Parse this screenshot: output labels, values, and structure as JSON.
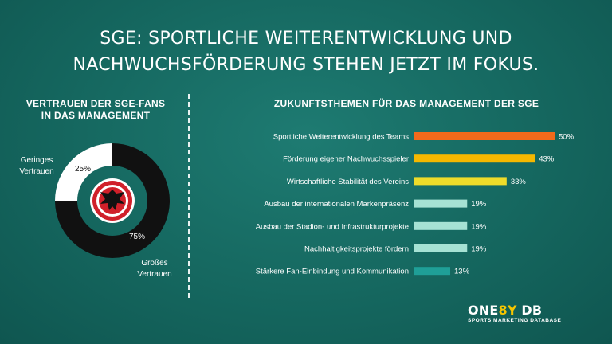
{
  "title_line1": "SGE: SPORTLICHE WEITERENTWICKLUNG UND",
  "title_line2": "NACHWUCHSFÖRDERUNG STEHEN JETZT IM FOKUS.",
  "colors": {
    "orange": "#f26a1b",
    "amber": "#f5b800",
    "yellow": "#eedc2a",
    "mint": "#a6e2d4",
    "teal": "#1f9f97",
    "donut_dark": "#111111",
    "donut_light": "#ffffff",
    "badge_red": "#d0202a"
  },
  "logo": {
    "part1": "ONE",
    "accent": "8Y",
    "part2": " DB",
    "sub": "SPORTS MARKETING DATABASE"
  },
  "chart_data": [
    {
      "type": "pie",
      "title_line1": "VERTRAUEN DER SGE-FANS",
      "title_line2": "IN DAS MANAGEMENT",
      "slices": [
        {
          "label_line1": "Geringes",
          "label_line2": "Vertrauen",
          "value": 25,
          "value_label": "25%",
          "color": "#ffffff"
        },
        {
          "label_line1": "Großes",
          "label_line2": "Vertrauen",
          "value": 75,
          "value_label": "75%",
          "color": "#111111"
        }
      ]
    },
    {
      "type": "bar",
      "orientation": "horizontal",
      "title": "ZUKUNFTSTHEMEN FÜR DAS MANAGEMENT DER SGE",
      "xlim": [
        0,
        50
      ],
      "categories": [
        "Sportliche Weiterentwicklung des Teams",
        "Förderung eigener Nachwuchsspieler",
        "Wirtschaftliche Stabilität des Vereins",
        "Ausbau der internationalen Markenpräsenz",
        "Ausbau der Stadion- und Infrastrukturprojekte",
        "Nachhaltigkeitsprojekte fördern",
        "Stärkere Fan-Einbindung und Kommunikation"
      ],
      "values": [
        50,
        43,
        33,
        19,
        19,
        19,
        13
      ],
      "value_labels": [
        "50%",
        "43%",
        "33%",
        "19%",
        "19%",
        "19%",
        "13%"
      ],
      "bar_colors": [
        "#f26a1b",
        "#f5b800",
        "#eedc2a",
        "#a6e2d4",
        "#a6e2d4",
        "#a6e2d4",
        "#1f9f97"
      ]
    }
  ]
}
